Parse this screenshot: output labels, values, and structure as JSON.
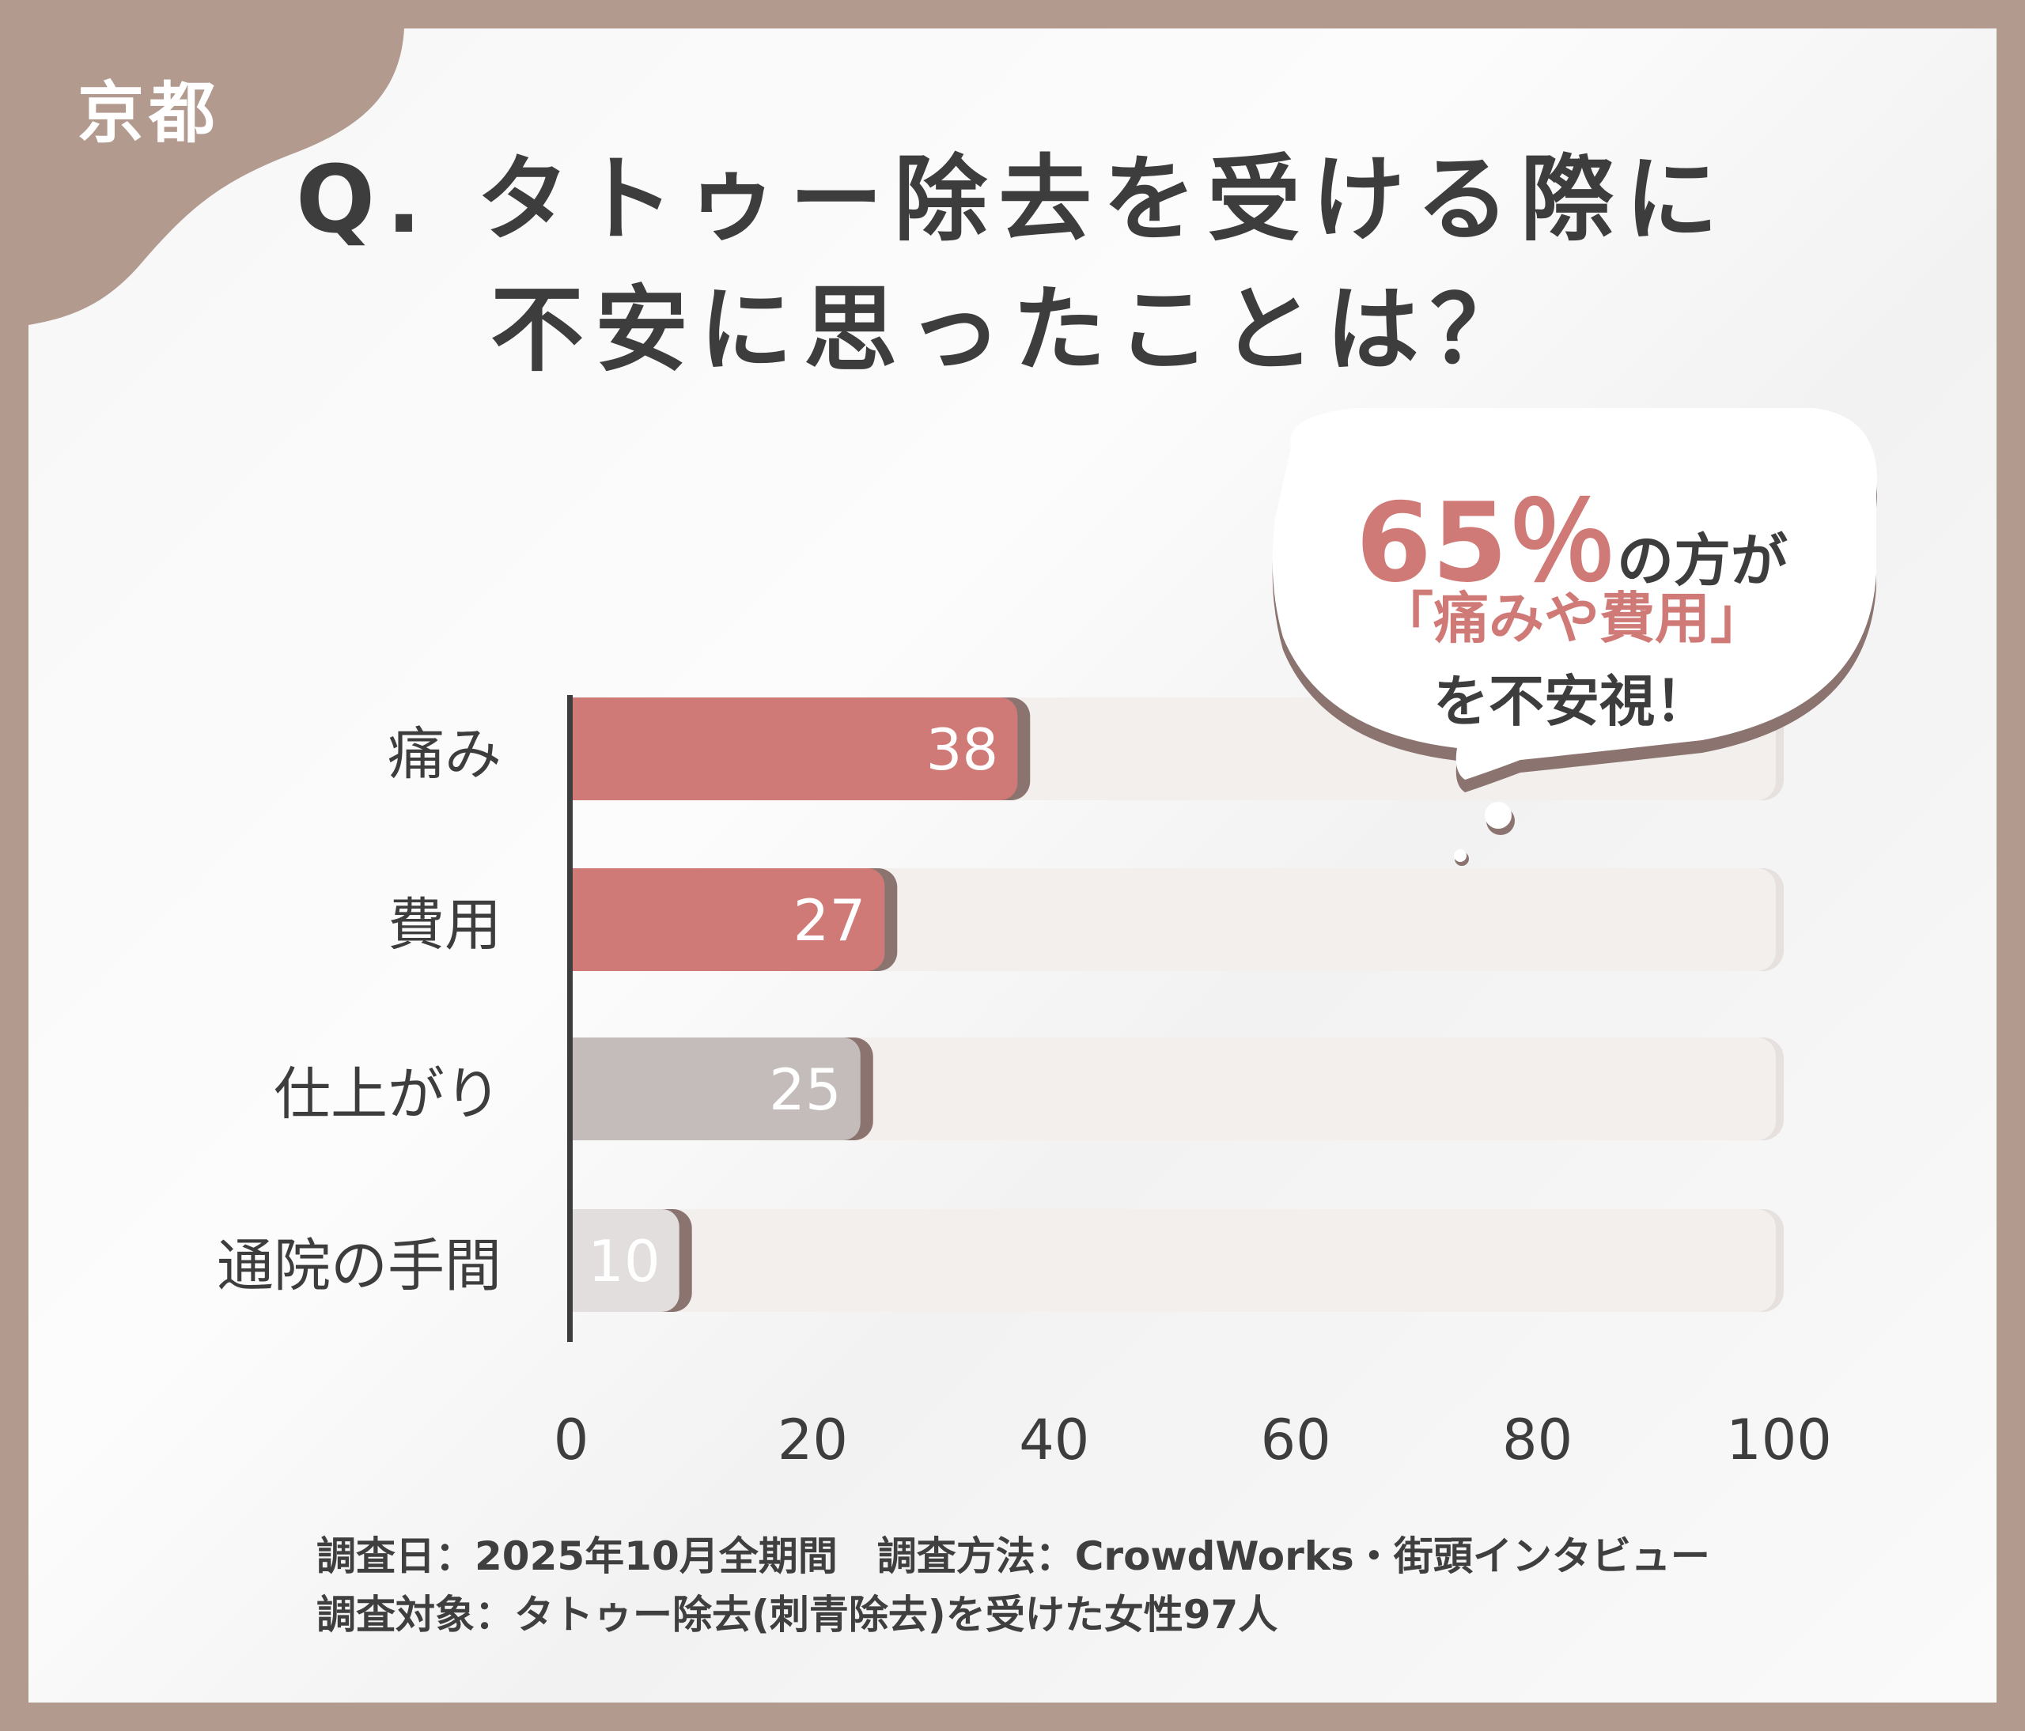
{
  "region": "京都",
  "title": {
    "line1": "Q. タトゥー除去を受ける際に",
    "line2": "不安に思ったことは？"
  },
  "callout": {
    "percent": "65％",
    "suffix": "の方が",
    "highlight": "「痛みや費用」",
    "line3": "を不安視！",
    "accent": "#d07a77"
  },
  "chart_data": {
    "type": "bar",
    "orientation": "horizontal",
    "categories": [
      "痛み",
      "費用",
      "仕上がり",
      "通院の手間"
    ],
    "values": [
      38,
      27,
      25,
      10
    ],
    "data_labels": [
      "38",
      "27",
      "25",
      "10"
    ],
    "xlim": [
      0,
      100
    ],
    "xticks": [
      "0",
      "20",
      "40",
      "60",
      "80",
      "100"
    ],
    "bar_colors": [
      "#d07a77",
      "#d07a77",
      "#c4bcba",
      "#e2dedd"
    ],
    "track_color": "#f3efed",
    "grid": false
  },
  "footer": {
    "line1": "調査日：2025年10月全期間　調査方法：CrowdWorks・街頭インタビュー",
    "line2": "調査対象：タトゥー除去(刺青除去)を受けた女性97人"
  }
}
